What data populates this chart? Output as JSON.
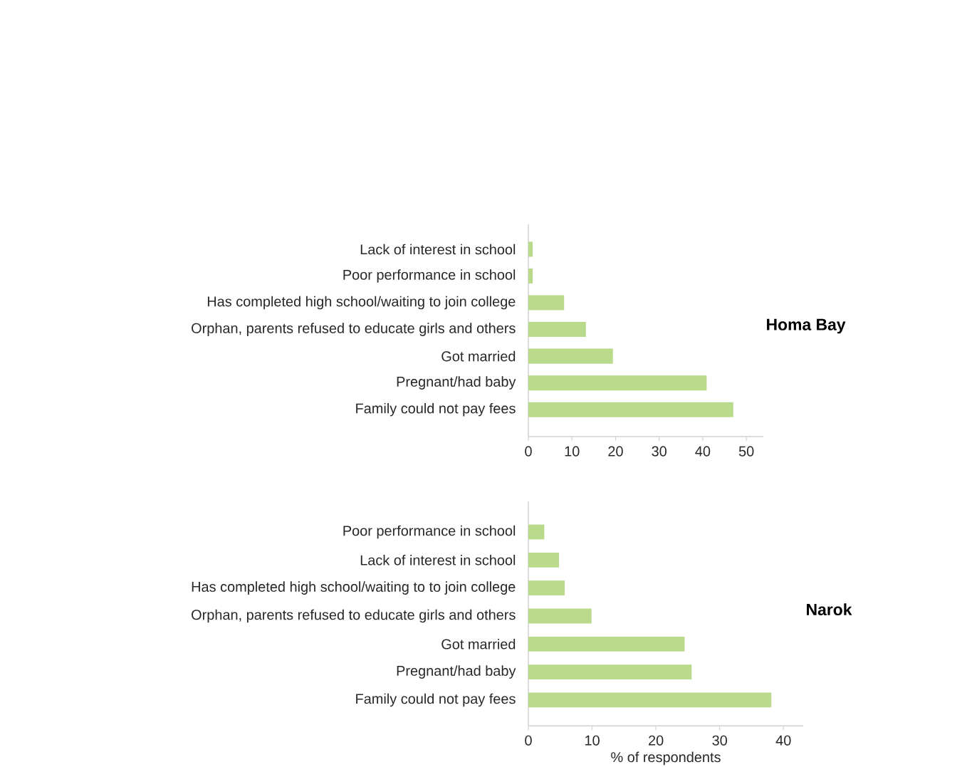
{
  "chart_data": [
    {
      "type": "bar",
      "orientation": "horizontal",
      "title": "Homa Bay",
      "categories": [
        "Lack of interest in school",
        "Poor performance in school",
        "Has completed high school/waiting to join college",
        "Orphan, parents refused to educate girls and others",
        "Got married",
        "Pregnant/had baby",
        "Family could not pay fees"
      ],
      "values": [
        1.0,
        1.0,
        8.2,
        13.2,
        19.4,
        40.9,
        47.0
      ],
      "color": "#b9da8a",
      "xlim": [
        0,
        53.9
      ],
      "xticks": [
        0,
        10,
        20,
        30,
        40,
        50
      ]
    },
    {
      "type": "bar",
      "orientation": "horizontal",
      "title": "Narok",
      "xlabel": "% of respondents",
      "categories": [
        "Poor performance in school",
        "Lack of interest in school",
        "Has completed high school/waiting to  to join college",
        "Orphan, parents refused to educate girls and others",
        "Got married",
        "Pregnant/had baby",
        "Family could not pay fees"
      ],
      "values": [
        2.5,
        4.8,
        5.7,
        9.9,
        24.5,
        25.6,
        38.1
      ],
      "color": "#b9da8a",
      "xlim": [
        0,
        43.1
      ],
      "xticks": [
        0,
        10,
        20,
        30,
        40
      ]
    }
  ]
}
